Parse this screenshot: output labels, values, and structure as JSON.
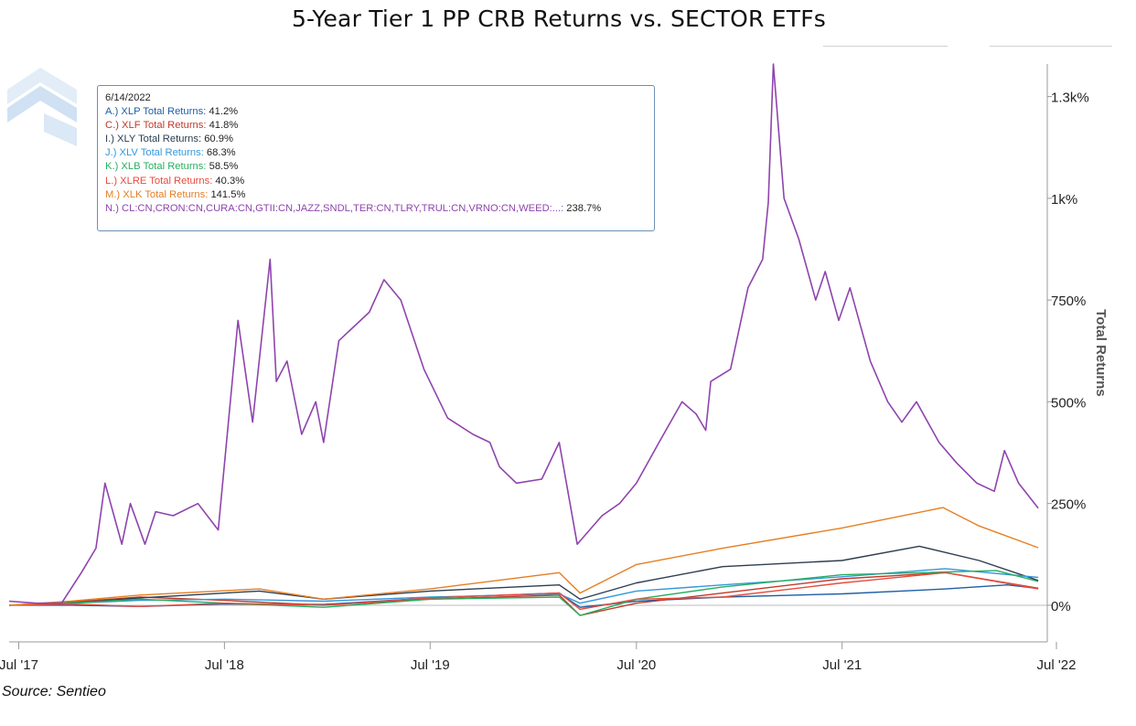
{
  "title": "5-Year Tier 1 PP CRB Returns vs. SECTOR ETFs",
  "source": "Source: Sentieo",
  "tooltip": {
    "date": "6/14/2022",
    "rows": [
      {
        "label": "A.) XLP Total Returns:",
        "value": "41.2%",
        "color": "#1f5fa6"
      },
      {
        "label": "C.) XLF Total Returns:",
        "value": "41.8%",
        "color": "#c0392b"
      },
      {
        "label": "I.) XLY Total Returns:",
        "value": "60.9%",
        "color": "#2c3e50"
      },
      {
        "label": "J.) XLV Total Returns:",
        "value": "68.3%",
        "color": "#3498db"
      },
      {
        "label": "K.) XLB Total Returns:",
        "value": "58.5%",
        "color": "#27ae60"
      },
      {
        "label": "L.) XLRE Total Returns:",
        "value": "40.3%",
        "color": "#e74c3c"
      },
      {
        "label": "M.) XLK Total Returns:",
        "value": "141.5%",
        "color": "#e67e22"
      },
      {
        "label": "N.) CL:CN,CRON:CN,CURA:CN,GTII:CN,JAZZ,SNDL,TER:CN,TLRY,TRUL:CN,VRNO:CN,WEED:...:",
        "value": "238.7%",
        "color": "#8e44ad"
      }
    ]
  },
  "chart_data": {
    "type": "line",
    "title": "5-Year Tier 1 PP CRB Returns vs. SECTOR ETFs",
    "xlabel": "",
    "ylabel": "Total Returns",
    "x_ticks": [
      "Jul '17",
      "Jul '18",
      "Jul '19",
      "Jul '20",
      "Jul '21",
      "Jul '22"
    ],
    "y_ticks": [
      "0%",
      "250%",
      "500%",
      "750%",
      "1k%",
      "1.3k%"
    ],
    "y_tick_values": [
      0,
      250,
      500,
      750,
      1000,
      1250
    ],
    "ylim": [
      -90,
      1330
    ],
    "xlim": [
      "2017-06-14",
      "2022-06-30"
    ],
    "grid": false,
    "y_axis_side": "right",
    "series": [
      {
        "name": "A.) XLP Total Returns",
        "color": "#1f5fa6",
        "x": [
          "2017-06-14",
          "2017-10-01",
          "2018-02-01",
          "2018-07-01",
          "2018-12-24",
          "2019-07-01",
          "2020-02-15",
          "2020-03-23",
          "2020-07-01",
          "2020-12-01",
          "2021-07-01",
          "2022-01-01",
          "2022-04-20",
          "2022-06-14"
        ],
        "y": [
          0,
          0,
          -3,
          3,
          2,
          18,
          30,
          -5,
          10,
          20,
          28,
          40,
          50,
          41.2
        ]
      },
      {
        "name": "C.) XLF Total Returns",
        "color": "#c0392b",
        "x": [
          "2017-06-14",
          "2017-10-01",
          "2018-02-01",
          "2018-07-01",
          "2018-12-24",
          "2019-07-01",
          "2020-02-15",
          "2020-03-23",
          "2020-07-01",
          "2020-12-01",
          "2021-07-01",
          "2022-01-01",
          "2022-06-14"
        ],
        "y": [
          0,
          8,
          20,
          12,
          0,
          15,
          25,
          -25,
          5,
          30,
          65,
          80,
          41.8
        ]
      },
      {
        "name": "I.) XLY Total Returns",
        "color": "#2c3e50",
        "x": [
          "2017-06-14",
          "2017-10-01",
          "2018-02-01",
          "2018-09-01",
          "2018-12-24",
          "2019-07-01",
          "2020-02-15",
          "2020-03-23",
          "2020-07-01",
          "2020-12-01",
          "2021-07-01",
          "2021-11-15",
          "2022-03-01",
          "2022-06-14"
        ],
        "y": [
          0,
          5,
          18,
          35,
          15,
          35,
          50,
          15,
          55,
          95,
          110,
          145,
          110,
          60.9
        ]
      },
      {
        "name": "J.) XLV Total Returns",
        "color": "#3498db",
        "x": [
          "2017-06-14",
          "2017-10-01",
          "2018-02-01",
          "2018-07-01",
          "2018-12-24",
          "2019-07-01",
          "2020-02-15",
          "2020-03-23",
          "2020-07-01",
          "2020-12-01",
          "2021-07-01",
          "2021-12-31",
          "2022-06-14"
        ],
        "y": [
          0,
          5,
          12,
          15,
          10,
          20,
          28,
          5,
          35,
          50,
          70,
          90,
          68.3
        ]
      },
      {
        "name": "K.) XLB Total Returns",
        "color": "#27ae60",
        "x": [
          "2017-06-14",
          "2017-10-01",
          "2018-02-01",
          "2018-07-01",
          "2018-12-24",
          "2019-07-01",
          "2020-02-15",
          "2020-03-23",
          "2020-07-01",
          "2020-12-01",
          "2021-07-01",
          "2022-04-01",
          "2022-06-14"
        ],
        "y": [
          0,
          5,
          15,
          5,
          -5,
          15,
          20,
          -25,
          15,
          45,
          75,
          85,
          58.5
        ]
      },
      {
        "name": "L.) XLRE Total Returns",
        "color": "#e74c3c",
        "x": [
          "2017-06-14",
          "2017-10-01",
          "2018-02-01",
          "2018-07-01",
          "2018-12-24",
          "2019-07-01",
          "2020-02-15",
          "2020-03-23",
          "2020-07-01",
          "2020-12-01",
          "2021-07-01",
          "2021-12-31",
          "2022-06-14"
        ],
        "y": [
          0,
          3,
          -3,
          5,
          0,
          18,
          30,
          -10,
          15,
          20,
          55,
          80,
          40.3
        ]
      },
      {
        "name": "M.) XLK Total Returns",
        "color": "#e67e22",
        "x": [
          "2017-06-14",
          "2017-10-01",
          "2018-02-01",
          "2018-09-01",
          "2018-12-24",
          "2019-07-01",
          "2020-02-15",
          "2020-03-23",
          "2020-07-01",
          "2020-12-01",
          "2021-07-01",
          "2021-12-27",
          "2022-03-01",
          "2022-06-14"
        ],
        "y": [
          0,
          10,
          25,
          40,
          15,
          40,
          80,
          30,
          100,
          140,
          190,
          240,
          195,
          141.5
        ]
      },
      {
        "name": "N.) CL:CN,CRON:CN,CURA:CN,GTII:CN,JAZZ,SNDL,TER:CN,TLRY,TRUL:CN,VRNO:CN,WEED:...",
        "color": "#8e44ad",
        "x": [
          "2017-06-14",
          "2017-08-01",
          "2017-09-15",
          "2017-10-20",
          "2017-11-15",
          "2017-12-01",
          "2017-12-31",
          "2018-01-15",
          "2018-02-10",
          "2018-03-01",
          "2018-04-01",
          "2018-05-15",
          "2018-06-20",
          "2018-07-25",
          "2018-08-20",
          "2018-09-20",
          "2018-10-01",
          "2018-10-20",
          "2018-11-15",
          "2018-12-10",
          "2018-12-24",
          "2019-01-20",
          "2019-03-15",
          "2019-04-10",
          "2019-05-10",
          "2019-06-20",
          "2019-08-01",
          "2019-09-15",
          "2019-10-15",
          "2019-11-01",
          "2019-12-01",
          "2020-01-15",
          "2020-02-15",
          "2020-03-18",
          "2020-05-01",
          "2020-06-01",
          "2020-07-01",
          "2020-08-10",
          "2020-09-20",
          "2020-10-15",
          "2020-11-01",
          "2020-11-10",
          "2020-12-15",
          "2021-01-15",
          "2021-02-10",
          "2021-02-20",
          "2021-03-01",
          "2021-03-20",
          "2021-04-15",
          "2021-05-15",
          "2021-06-01",
          "2021-06-25",
          "2021-07-15",
          "2021-08-20",
          "2021-09-20",
          "2021-10-15",
          "2021-11-10",
          "2021-12-20",
          "2022-01-20",
          "2022-02-25",
          "2022-03-28",
          "2022-04-15",
          "2022-05-10",
          "2022-06-14"
        ],
        "y": [
          10,
          5,
          5,
          80,
          140,
          300,
          150,
          250,
          150,
          230,
          220,
          250,
          185,
          700,
          450,
          850,
          550,
          600,
          420,
          500,
          400,
          650,
          720,
          800,
          750,
          580,
          460,
          420,
          400,
          340,
          300,
          310,
          400,
          150,
          220,
          250,
          300,
          400,
          500,
          470,
          430,
          550,
          580,
          780,
          850,
          990,
          1330,
          1000,
          900,
          750,
          820,
          700,
          780,
          600,
          500,
          450,
          500,
          400,
          350,
          300,
          280,
          380,
          300,
          238.7
        ]
      }
    ]
  }
}
